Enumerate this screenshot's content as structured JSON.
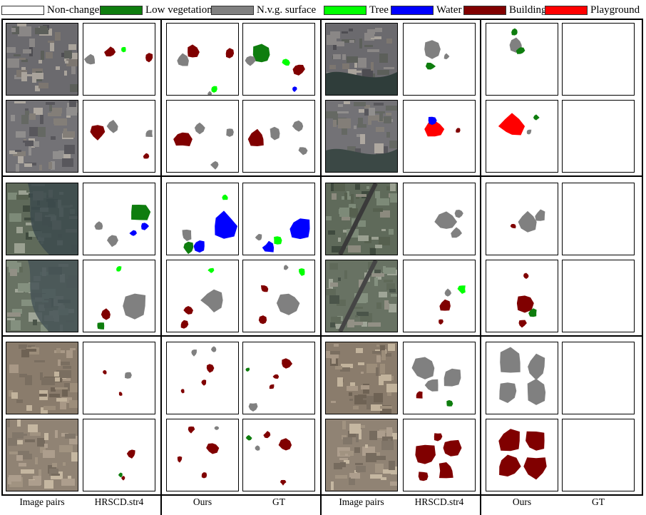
{
  "legend": {
    "items": [
      {
        "label": "Non-change",
        "color": "#ffffff"
      },
      {
        "label": "Low vegetation",
        "color": "#0e7d0e"
      },
      {
        "label": "N.v.g. surface",
        "color": "#808080"
      },
      {
        "label": "Tree",
        "color": "#00ff00"
      },
      {
        "label": "Water",
        "color": "#0000ff"
      },
      {
        "label": "Building",
        "color": "#800000"
      },
      {
        "label": "Playground",
        "color": "#ff0000"
      }
    ]
  },
  "columns": {
    "labels": [
      "Image pairs",
      "HRSCD.str4",
      "Ours",
      "GT",
      "Image pairs",
      "HRSCD.str4",
      "Ours",
      "GT"
    ]
  },
  "colors": {
    "low_vegetation": "#0e7d0e",
    "nvg_surface": "#808080",
    "tree": "#00ff00",
    "water": "#0000ff",
    "building": "#800000",
    "playground": "#ff0000"
  }
}
